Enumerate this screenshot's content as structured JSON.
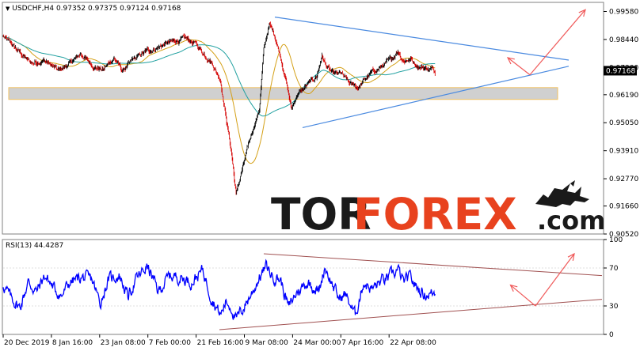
{
  "header": {
    "symbol_line": "USDCHF,H4  0.97352 0.97375 0.97124 0.97168"
  },
  "rsi_header": "RSI(13) 44.4287",
  "current_price": "0.97168",
  "watermark": {
    "part1": "TOR",
    "part2": "FOREX",
    "part3": ".com"
  },
  "colors": {
    "bull": "#000000",
    "bear": "#d40000",
    "ma_fast": "#d4a017",
    "ma_slow": "#20a0a0",
    "triangle": "#4a8ae0",
    "arrow": "#f05a5a",
    "zone_fill": "#d0d0d0",
    "zone_stroke": "#f0c060",
    "rsi_line": "#0000ff",
    "rsi_channel": "#a05050",
    "watermark_dark": "#1a1a1a",
    "watermark_red": "#e8421e"
  },
  "chart_data": [
    {
      "type": "candlestick",
      "title": "USDCHF,H4",
      "ylim": [
        0.9052,
        0.9995
      ],
      "y_ticks": [
        {
          "label": "0.99580",
          "value": 0.9958
        },
        {
          "label": "0.98440",
          "value": 0.9844
        },
        {
          "label": "0.97300",
          "value": 0.973
        },
        {
          "label": "0.96190",
          "value": 0.9619
        },
        {
          "label": "0.95050",
          "value": 0.9505
        },
        {
          "label": "0.93910",
          "value": 0.9391
        },
        {
          "label": "0.92770",
          "value": 0.9277
        },
        {
          "label": "0.91660",
          "value": 0.9166
        },
        {
          "label": "0.90520",
          "value": 0.9052
        }
      ],
      "x_ticks": [
        "20 Dec 2019",
        "8 Jan 16:00",
        "23 Jan 08:00",
        "7 Feb 00:00",
        "21 Feb 16:00",
        "9 Mar 08:00",
        "24 Mar 00:00",
        "7 Apr 16:00",
        "22 Apr 08:00"
      ],
      "bars_per_tick": 87,
      "total_bars": 780,
      "anchors": [
        [
          0,
          0.9855
        ],
        [
          25,
          0.98
        ],
        [
          50,
          0.9748
        ],
        [
          75,
          0.976
        ],
        [
          100,
          0.9715
        ],
        [
          120,
          0.9745
        ],
        [
          140,
          0.9785
        ],
        [
          160,
          0.974
        ],
        [
          180,
          0.972
        ],
        [
          200,
          0.977
        ],
        [
          215,
          0.9715
        ],
        [
          235,
          0.976
        ],
        [
          255,
          0.979
        ],
        [
          275,
          0.981
        ],
        [
          300,
          0.983
        ],
        [
          325,
          0.9845
        ],
        [
          345,
          0.983
        ],
        [
          360,
          0.979
        ],
        [
          375,
          0.976
        ],
        [
          392,
          0.968
        ],
        [
          400,
          0.956
        ],
        [
          412,
          0.938
        ],
        [
          420,
          0.9215
        ],
        [
          432,
          0.932
        ],
        [
          448,
          0.946
        ],
        [
          462,
          0.956
        ],
        [
          470,
          0.98
        ],
        [
          480,
          0.9905
        ],
        [
          490,
          0.986
        ],
        [
          500,
          0.978
        ],
        [
          510,
          0.968
        ],
        [
          520,
          0.956
        ],
        [
          530,
          0.962
        ],
        [
          550,
          0.966
        ],
        [
          565,
          0.969
        ],
        [
          575,
          0.978
        ],
        [
          582,
          0.974
        ],
        [
          595,
          0.97
        ],
        [
          610,
          0.97
        ],
        [
          625,
          0.966
        ],
        [
          640,
          0.965
        ],
        [
          660,
          0.97
        ],
        [
          680,
          0.973
        ],
        [
          700,
          0.976
        ],
        [
          712,
          0.98
        ],
        [
          722,
          0.976
        ],
        [
          735,
          0.9765
        ],
        [
          745,
          0.974
        ],
        [
          760,
          0.973
        ],
        [
          780,
          0.9717
        ]
      ],
      "zone": {
        "x_start_bar": 10,
        "x_end_bar": 1000,
        "y_low": 0.96,
        "y_high": 0.9648
      },
      "triangle": {
        "upper": [
          [
            490,
            0.9935
          ],
          [
            1020,
            0.976
          ]
        ],
        "lower": [
          [
            540,
            0.9485
          ],
          [
            1020,
            0.9735
          ]
        ]
      },
      "arrows": [
        {
          "from": [
            950,
            0.97
          ],
          "to": [
            1050,
            0.9965
          ]
        },
        {
          "from": [
            950,
            0.97
          ],
          "to": [
            910,
            0.977
          ]
        }
      ]
    },
    {
      "type": "line",
      "title": "RSI(13)",
      "ylim": [
        0,
        100
      ],
      "y_ticks": [
        {
          "label": "100",
          "value": 100
        },
        {
          "label": "70",
          "value": 70
        },
        {
          "label": "30",
          "value": 30
        },
        {
          "label": "0",
          "value": 0
        }
      ],
      "anchors": [
        [
          0,
          52
        ],
        [
          15,
          38
        ],
        [
          30,
          28
        ],
        [
          45,
          55
        ],
        [
          60,
          45
        ],
        [
          75,
          62
        ],
        [
          90,
          50
        ],
        [
          105,
          40
        ],
        [
          120,
          55
        ],
        [
          140,
          60
        ],
        [
          160,
          58
        ],
        [
          175,
          33
        ],
        [
          190,
          58
        ],
        [
          210,
          62
        ],
        [
          225,
          40
        ],
        [
          240,
          58
        ],
        [
          260,
          72
        ],
        [
          280,
          45
        ],
        [
          300,
          62
        ],
        [
          320,
          60
        ],
        [
          340,
          55
        ],
        [
          360,
          68
        ],
        [
          375,
          40
        ],
        [
          392,
          20
        ],
        [
          402,
          35
        ],
        [
          412,
          28
        ],
        [
          420,
          15
        ],
        [
          435,
          30
        ],
        [
          450,
          45
        ],
        [
          462,
          60
        ],
        [
          475,
          72
        ],
        [
          485,
          62
        ],
        [
          500,
          58
        ],
        [
          515,
          28
        ],
        [
          530,
          45
        ],
        [
          550,
          55
        ],
        [
          570,
          45
        ],
        [
          580,
          72
        ],
        [
          592,
          55
        ],
        [
          605,
          38
        ],
        [
          618,
          42
        ],
        [
          635,
          20
        ],
        [
          650,
          55
        ],
        [
          665,
          48
        ],
        [
          680,
          55
        ],
        [
          700,
          62
        ],
        [
          712,
          68
        ],
        [
          722,
          55
        ],
        [
          735,
          60
        ],
        [
          745,
          50
        ],
        [
          760,
          42
        ],
        [
          780,
          44
        ]
      ],
      "channel": {
        "upper": [
          [
            470,
            85
          ],
          [
            1080,
            62
          ]
        ],
        "lower": [
          [
            390,
            5
          ],
          [
            1080,
            37
          ]
        ]
      },
      "arrows": [
        {
          "from": [
            960,
            30
          ],
          "to": [
            1030,
            85
          ]
        },
        {
          "from": [
            960,
            30
          ],
          "to": [
            915,
            52
          ]
        }
      ]
    }
  ]
}
